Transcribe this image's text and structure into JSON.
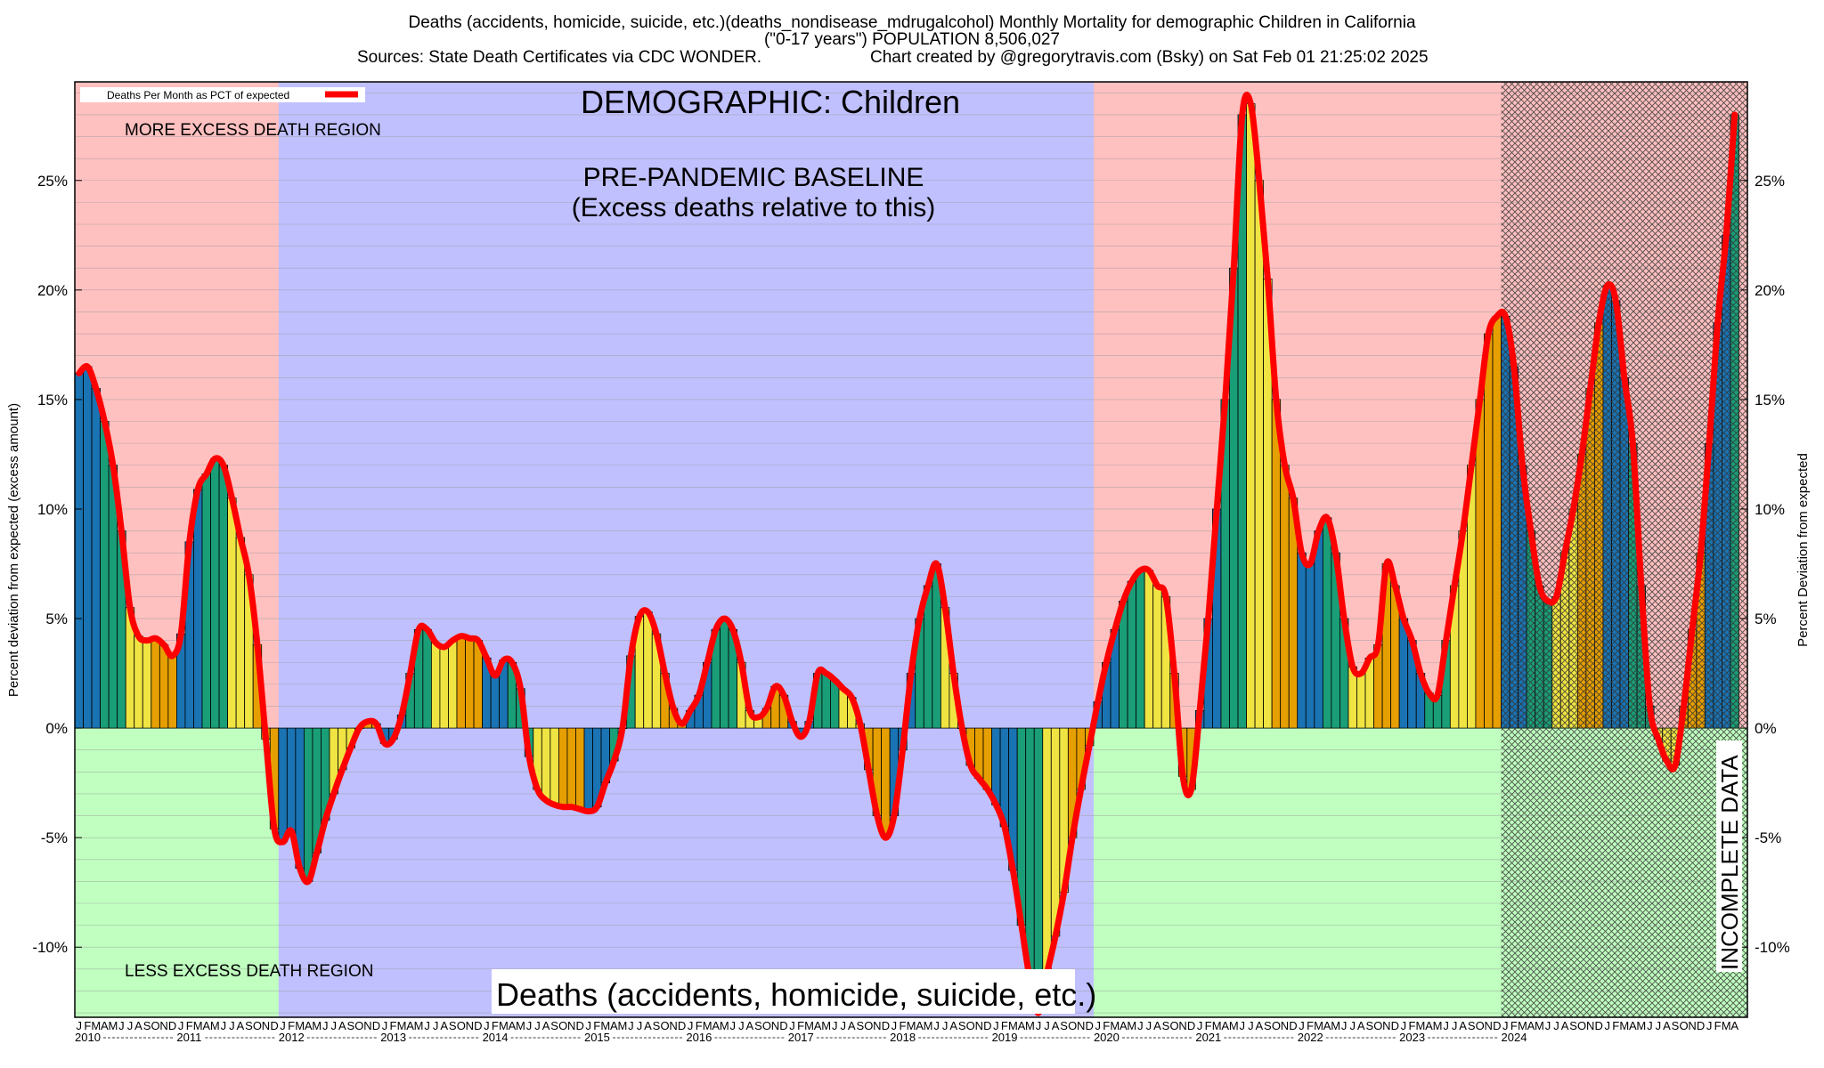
{
  "title_lines": [
    "Deaths (accidents, homicide, suicide, etc.)(deaths_nondisease_mdrugalcohol) Monthly Mortality for demographic Children in California",
    "(\"0-17 years\") POPULATION 8,506,027",
    "Sources: State Death Certificates via CDC WONDER.",
    "Chart created by @gregorytravis.com (Bsky) on Sat Feb 01 21:25:02 2025"
  ],
  "annotations": {
    "demographic": "DEMOGRAPHIC: Children",
    "baseline_line1": "PRE-PANDEMIC BASELINE",
    "baseline_line2": "(Excess deaths relative to this)",
    "more_region": "MORE EXCESS DEATH REGION",
    "less_region": "LESS EXCESS DEATH REGION",
    "incomplete": "INCOMPLETE DATA",
    "bottom_label": "Deaths (accidents, homicide, suicide, etc.)",
    "legend": "Deaths Per Month as PCT of expected"
  },
  "colors": {
    "excess_region": "#ffc0c0",
    "deficit_region": "#c0ffc0",
    "baseline_region": "#c0c0ff",
    "line": "#ff0000",
    "bar_winter": "#1a73b3",
    "bar_spring": "#1a9e77",
    "bar_summer": "#f0e442",
    "bar_fall": "#e69f00"
  },
  "chart_data": {
    "type": "bar",
    "title": "Deaths (accidents, homicide, suicide, etc.)(deaths_nondisease_mdrugalcohol) Monthly Mortality for demographic Children in California",
    "ylabel_left": "Percent deviation from expected (excess amount)",
    "ylabel_right": "Percent Deviation from expected",
    "ylim": [
      -13.2,
      29.5
    ],
    "yticks": [
      -10,
      -5,
      0,
      5,
      10,
      15,
      20,
      25
    ],
    "ytick_labels": [
      "-10%",
      "-5%",
      "0%",
      "5%",
      "10%",
      "15%",
      "20%",
      "25%"
    ],
    "start_month": "2010-01",
    "month_letters": [
      "J",
      "F",
      "M",
      "A",
      "M",
      "J",
      "J",
      "A",
      "S",
      "O",
      "N",
      "D"
    ],
    "years": [
      "2010",
      "2011",
      "2012",
      "2013",
      "2014",
      "2015",
      "2016",
      "2017",
      "2018",
      "2019",
      "2020",
      "2021",
      "2022",
      "2023",
      "2024"
    ],
    "baseline_period": [
      "2012-01",
      "2019-12"
    ],
    "incomplete_from": "2024-01",
    "series": [
      {
        "name": "Deaths Per Month as PCT of expected",
        "values": [
          16.2,
          16.5,
          15.5,
          14.0,
          12.0,
          9.0,
          5.5,
          4.2,
          4.0,
          4.1,
          3.8,
          3.3,
          4.3,
          8.5,
          10.9,
          11.6,
          12.3,
          12.0,
          10.5,
          8.7,
          7.0,
          3.8,
          -0.5,
          -4.6,
          -5.2,
          -4.7,
          -6.4,
          -7.0,
          -5.7,
          -4.2,
          -3.0,
          -1.9,
          -0.9,
          0.0,
          0.3,
          0.2,
          -0.7,
          -0.5,
          0.6,
          2.5,
          4.5,
          4.5,
          3.9,
          3.7,
          4.0,
          4.2,
          4.1,
          4.0,
          3.2,
          2.4,
          3.1,
          3.0,
          1.8,
          -1.3,
          -2.8,
          -3.3,
          -3.5,
          -3.6,
          -3.6,
          -3.7,
          -3.8,
          -3.6,
          -2.5,
          -1.5,
          0.0,
          3.3,
          5.1,
          5.3,
          4.3,
          2.5,
          0.9,
          0.2,
          0.8,
          1.5,
          3.0,
          4.5,
          5.0,
          4.5,
          3.0,
          0.8,
          0.5,
          0.9,
          1.9,
          1.5,
          0.3,
          -0.4,
          0.3,
          2.5,
          2.5,
          2.2,
          1.8,
          1.4,
          0.2,
          -1.9,
          -4.0,
          -5.0,
          -4.0,
          -1.0,
          2.5,
          5.0,
          6.5,
          7.5,
          5.5,
          2.5,
          0.0,
          -1.7,
          -2.3,
          -2.8,
          -3.5,
          -4.5,
          -6.5,
          -9.0,
          -11.5,
          -13.0,
          -11.2,
          -9.5,
          -7.5,
          -5.0,
          -2.8,
          -0.8,
          1.2,
          3.0,
          4.5,
          5.8,
          6.7,
          7.2,
          7.2,
          6.5,
          6.0,
          2.5,
          -2.2,
          -2.8,
          0.8,
          5.0,
          10.0,
          15.0,
          21.0,
          28.0,
          28.5,
          25.0,
          20.5,
          15.0,
          12.0,
          10.5,
          8.0,
          7.5,
          9.0,
          9.6,
          8.0,
          5.0,
          2.8,
          2.5,
          3.2,
          3.8,
          7.5,
          6.5,
          5.0,
          4.0,
          2.5,
          1.6,
          1.5,
          4.0,
          6.5,
          9.0,
          12.0,
          15.0,
          18.0,
          18.8,
          18.8,
          16.5,
          12.0,
          9.0,
          6.5,
          5.8,
          6.0,
          8.0,
          10.0,
          12.5,
          15.5,
          18.5,
          20.2,
          19.5,
          16.0,
          13.0,
          6.5,
          1.0,
          -0.5,
          -1.5,
          -1.7,
          1.0,
          4.5,
          8.0,
          13.0,
          18.5,
          22.5,
          28.0
        ]
      }
    ],
    "grid": true,
    "legend_position": "top-left"
  }
}
